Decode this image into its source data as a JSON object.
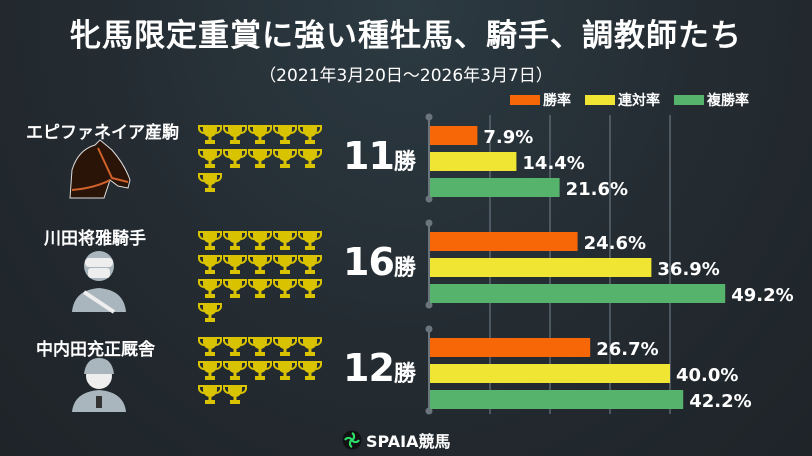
{
  "title": "牝馬限定重賞に強い種牡馬、騎手、調教師たち",
  "subtitle": "（2021年3月20日～2026年3月7日）",
  "brand": "SPAIA競馬",
  "chart_data": {
    "type": "bar",
    "orientation": "horizontal",
    "categories": [
      "エピファネイア産駒",
      "川田将雅騎手",
      "中内田充正厩舎"
    ],
    "wins": [
      11,
      16,
      12
    ],
    "wins_suffix": "勝",
    "series": [
      {
        "name": "勝率",
        "color": "#f76707",
        "values": [
          7.9,
          24.6,
          26.7
        ]
      },
      {
        "name": "連対率",
        "color": "#efe532",
        "values": [
          14.4,
          36.9,
          40.0
        ]
      },
      {
        "name": "複勝率",
        "color": "#55b36b",
        "values": [
          21.6,
          49.2,
          42.2
        ]
      }
    ],
    "value_suffix": "%",
    "xlim": [
      0,
      50
    ],
    "grid": true,
    "legend": "top-right",
    "trophy_color": "#d9c200"
  }
}
